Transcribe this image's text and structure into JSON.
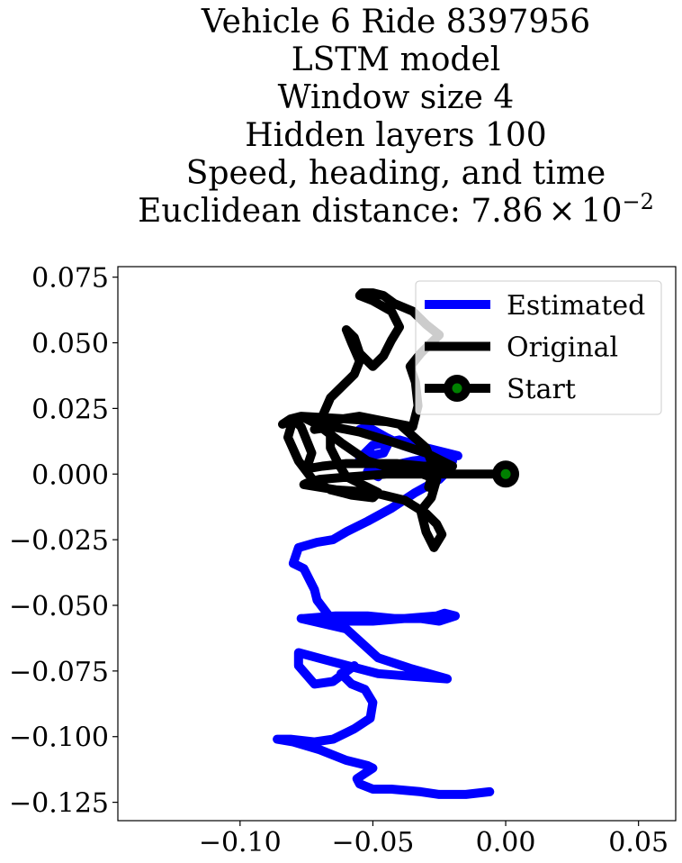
{
  "chart_data": {
    "type": "line",
    "title_lines": [
      "Vehicle 6 Ride 8397956",
      "LSTM model",
      "Window size 4",
      "Hidden layers 100",
      "Speed, heading, and time"
    ],
    "title_metric": {
      "label": "Euclidean distance: 7.86",
      "times": "×",
      "base": "10",
      "exponent": "−2"
    },
    "xlabel": "",
    "ylabel": "",
    "xlim": [
      -0.146,
      0.064
    ],
    "ylim": [
      -0.132,
      0.079
    ],
    "x_ticks": [
      -0.1,
      -0.05,
      0.0,
      0.05
    ],
    "x_tick_labels": [
      "−0.10",
      "−0.05",
      "0.00",
      "0.05"
    ],
    "y_ticks": [
      0.075,
      0.05,
      0.025,
      0.0,
      -0.025,
      -0.05,
      -0.075,
      -0.1,
      -0.125
    ],
    "y_tick_labels": [
      "0.075",
      "0.050",
      "0.025",
      "0.000",
      "−0.025",
      "−0.050",
      "−0.075",
      "−0.100",
      "−0.125"
    ],
    "grid": false,
    "legend_position": "top-right",
    "series": [
      {
        "name": "Estimated",
        "color": "#0000ff",
        "x": [
          -0.006,
          -0.015,
          -0.025,
          -0.032,
          -0.043,
          -0.05,
          -0.055,
          -0.056,
          -0.053,
          -0.05,
          -0.052,
          -0.06,
          -0.07,
          -0.08,
          -0.086,
          -0.081,
          -0.072,
          -0.065,
          -0.057,
          -0.051,
          -0.05,
          -0.053,
          -0.058,
          -0.062,
          -0.057,
          -0.065,
          -0.072,
          -0.078,
          -0.078,
          -0.067,
          -0.048,
          -0.036,
          -0.022,
          -0.036,
          -0.048,
          -0.06,
          -0.077,
          -0.076,
          -0.064,
          -0.052,
          -0.042,
          -0.032,
          -0.025,
          -0.019,
          -0.023,
          -0.026,
          -0.05,
          -0.065,
          -0.071,
          -0.072,
          -0.076,
          -0.08,
          -0.078,
          -0.071,
          -0.065,
          -0.06,
          -0.052,
          -0.043,
          -0.034,
          -0.025,
          -0.022,
          -0.02,
          -0.025,
          -0.033,
          -0.039,
          -0.045,
          -0.052,
          -0.055,
          -0.048,
          -0.044,
          -0.046,
          -0.055,
          -0.05,
          -0.04,
          -0.03,
          -0.018,
          -0.035,
          -0.052,
          -0.048
        ],
        "y": [
          -0.121,
          -0.122,
          -0.122,
          -0.121,
          -0.12,
          -0.12,
          -0.118,
          -0.116,
          -0.114,
          -0.112,
          -0.111,
          -0.109,
          -0.105,
          -0.102,
          -0.101,
          -0.101,
          -0.102,
          -0.101,
          -0.097,
          -0.093,
          -0.087,
          -0.082,
          -0.08,
          -0.076,
          -0.073,
          -0.079,
          -0.08,
          -0.073,
          -0.068,
          -0.071,
          -0.076,
          -0.077,
          -0.078,
          -0.074,
          -0.07,
          -0.059,
          -0.055,
          -0.055,
          -0.054,
          -0.054,
          -0.055,
          -0.055,
          -0.056,
          -0.054,
          -0.053,
          -0.054,
          -0.056,
          -0.056,
          -0.048,
          -0.044,
          -0.036,
          -0.034,
          -0.028,
          -0.026,
          -0.025,
          -0.022,
          -0.018,
          -0.013,
          -0.007,
          -0.002,
          0.001,
          0.005,
          0.006,
          0.009,
          0.011,
          0.014,
          0.018,
          0.017,
          0.015,
          0.012,
          0.008,
          0.006,
          0.011,
          0.013,
          0.01,
          0.007,
          0.005,
          0.001,
          -0.001
        ]
      },
      {
        "name": "Original",
        "color": "#000000",
        "x": [
          0.0,
          -0.015,
          -0.03,
          -0.045,
          -0.058,
          -0.07,
          -0.074,
          -0.076,
          -0.064,
          -0.05,
          -0.038,
          -0.03,
          -0.026,
          -0.024,
          -0.027,
          -0.03,
          -0.032,
          -0.028,
          -0.026,
          -0.034,
          -0.042,
          -0.052,
          -0.062,
          -0.071,
          -0.077,
          -0.081,
          -0.084,
          -0.077,
          -0.06,
          -0.045,
          -0.035,
          -0.033,
          -0.034,
          -0.036,
          -0.032,
          -0.025,
          -0.03,
          -0.035,
          -0.042,
          -0.046,
          -0.05,
          -0.054,
          -0.055,
          -0.05,
          -0.043,
          -0.04,
          -0.043,
          -0.046,
          -0.05,
          -0.055,
          -0.057,
          -0.06,
          -0.058,
          -0.055,
          -0.057,
          -0.066,
          -0.069,
          -0.066,
          -0.066,
          -0.063,
          -0.06,
          -0.052,
          -0.048,
          -0.05,
          -0.058,
          -0.066,
          -0.072,
          -0.078,
          -0.082,
          -0.08,
          -0.077,
          -0.073,
          -0.075,
          -0.069,
          -0.06,
          -0.05,
          -0.041,
          -0.031,
          -0.02,
          -0.03,
          -0.042,
          -0.055,
          -0.065,
          -0.072,
          -0.068,
          -0.055,
          -0.04,
          -0.03,
          -0.027,
          -0.029
        ],
        "y": [
          0.0,
          0.0,
          0.0,
          0.0,
          -0.001,
          -0.002,
          -0.003,
          -0.004,
          -0.006,
          -0.007,
          -0.01,
          -0.015,
          -0.019,
          -0.023,
          -0.028,
          -0.022,
          -0.014,
          -0.009,
          -0.002,
          0.001,
          0.002,
          0.005,
          0.012,
          0.019,
          0.022,
          0.021,
          0.019,
          0.022,
          0.021,
          0.02,
          0.018,
          0.026,
          0.035,
          0.041,
          0.046,
          0.053,
          0.057,
          0.062,
          0.065,
          0.068,
          0.069,
          0.069,
          0.068,
          0.066,
          0.062,
          0.056,
          0.051,
          0.045,
          0.041,
          0.046,
          0.052,
          0.055,
          0.05,
          0.043,
          0.038,
          0.029,
          0.022,
          0.016,
          0.01,
          0.004,
          -0.001,
          -0.005,
          -0.007,
          -0.009,
          -0.008,
          -0.006,
          -0.003,
          0.005,
          0.014,
          0.021,
          0.018,
          0.008,
          0.002,
          0.003,
          0.004,
          0.004,
          0.004,
          0.003,
          0.003,
          0.008,
          0.012,
          0.016,
          0.018,
          0.017,
          0.02,
          0.022,
          0.019,
          0.01,
          0.002,
          -0.005
        ]
      },
      {
        "name": "Start",
        "type": "marker",
        "color": "#000000",
        "face_color": "#008000",
        "x": [
          0.0
        ],
        "y": [
          0.0
        ]
      }
    ],
    "legend": [
      {
        "label": "Estimated",
        "color": "#0000ff",
        "marker": false
      },
      {
        "label": "Original",
        "color": "#000000",
        "marker": false
      },
      {
        "label": "Start",
        "color": "#000000",
        "marker": true,
        "marker_face": "#008000"
      }
    ]
  }
}
